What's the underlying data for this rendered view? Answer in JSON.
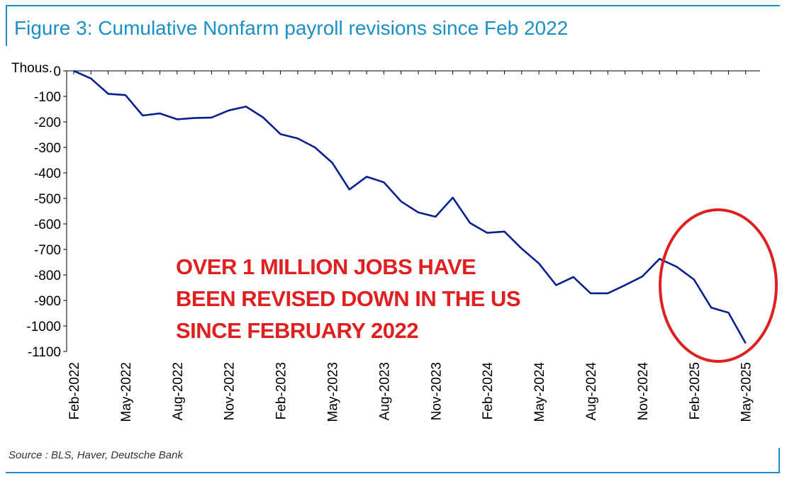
{
  "title": "Figure 3: Cumulative Nonfarm payroll revisions since Feb 2022",
  "source": "Source : BLS, Haver, Deutsche Bank",
  "annotation": {
    "lines": [
      "OVER 1 MILLION JOBS HAVE",
      "BEEN REVISED DOWN IN THE US",
      "SINCE FEBRUARY 2022"
    ],
    "color": "#e02020"
  },
  "colors": {
    "line": "#0a1f8f",
    "frame": "#1a8fc4",
    "circle": "#e02020"
  },
  "chart_data": {
    "type": "line",
    "title": "Figure 3: Cumulative Nonfarm payroll revisions since Feb 2022",
    "ylabel": "Thous.",
    "ylim": [
      -1100,
      0
    ],
    "yticks": [
      0,
      -100,
      -200,
      -300,
      -400,
      -500,
      -600,
      -700,
      -800,
      -900,
      -1000,
      -1100
    ],
    "ytick_labels": [
      "0",
      "-100",
      "-200",
      "-300",
      "-400",
      "-500",
      "-600",
      "-700",
      "-800",
      "-900",
      "-1000",
      "-1100"
    ],
    "xtick_labels": [
      "Feb-2022",
      "May-2022",
      "Aug-2022",
      "Nov-2022",
      "Feb-2023",
      "May-2023",
      "Aug-2023",
      "Nov-2023",
      "Feb-2024",
      "May-2024",
      "Aug-2024",
      "Nov-2024",
      "Feb-2025",
      "May-2025"
    ],
    "grid": false,
    "x": [
      "Feb-2022",
      "Mar-2022",
      "Apr-2022",
      "May-2022",
      "Jun-2022",
      "Jul-2022",
      "Aug-2022",
      "Sep-2022",
      "Oct-2022",
      "Nov-2022",
      "Dec-2022",
      "Jan-2023",
      "Feb-2023",
      "Mar-2023",
      "Apr-2023",
      "May-2023",
      "Jun-2023",
      "Jul-2023",
      "Aug-2023",
      "Sep-2023",
      "Oct-2023",
      "Nov-2023",
      "Dec-2023",
      "Jan-2024",
      "Feb-2024",
      "Mar-2024",
      "Apr-2024",
      "May-2024",
      "Jun-2024",
      "Jul-2024",
      "Aug-2024",
      "Sep-2024",
      "Oct-2024",
      "Nov-2024",
      "Dec-2024",
      "Jan-2025",
      "Feb-2025",
      "Mar-2025",
      "Apr-2025",
      "May-2025"
    ],
    "series": [
      {
        "values": [
          0,
          -30,
          -90,
          -95,
          -175,
          -167,
          -190,
          -185,
          -183,
          -155,
          -140,
          -183,
          -248,
          -265,
          -300,
          -360,
          -465,
          -415,
          -437,
          -512,
          -555,
          -572,
          -497,
          -596,
          -635,
          -630,
          -697,
          -755,
          -840,
          -808,
          -872,
          -872,
          -840,
          -806,
          -737,
          -768,
          -818,
          -928,
          -948,
          -1068
        ]
      }
    ]
  }
}
